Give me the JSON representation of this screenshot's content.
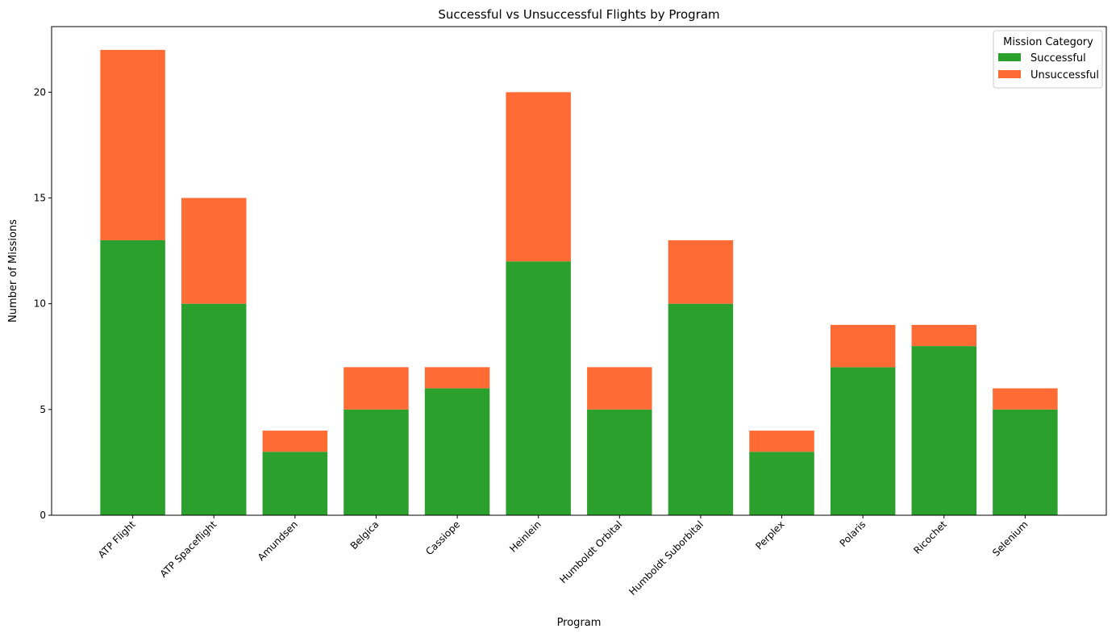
{
  "chart_data": {
    "type": "bar",
    "stacked": true,
    "title": "Successful vs Unsuccessful Flights by Program",
    "xlabel": "Program",
    "ylabel": "Number of Missions",
    "ylim": [
      0,
      23.1
    ],
    "yticks": [
      "0",
      "5",
      "10",
      "15",
      "20"
    ],
    "categories": [
      "ATP Flight",
      "ATP Spaceflight",
      "Amundsen",
      "Belgica",
      "Cassiope",
      "Heinlein",
      "Humboldt Orbital",
      "Humboldt Suborbital",
      "Perplex",
      "Polaris",
      "Ricochet",
      "Selenium"
    ],
    "series": [
      {
        "name": "Successful",
        "color": "#2ca02c",
        "values": [
          13,
          10,
          3,
          5,
          6,
          12,
          5,
          10,
          3,
          7,
          8,
          5
        ]
      },
      {
        "name": "Unsuccessful",
        "color": "#ff6b35",
        "values": [
          9,
          5,
          1,
          2,
          1,
          8,
          2,
          3,
          1,
          2,
          1,
          1
        ]
      }
    ],
    "legend": {
      "title": "Mission Category",
      "placement": "top-right"
    },
    "grid": false
  }
}
